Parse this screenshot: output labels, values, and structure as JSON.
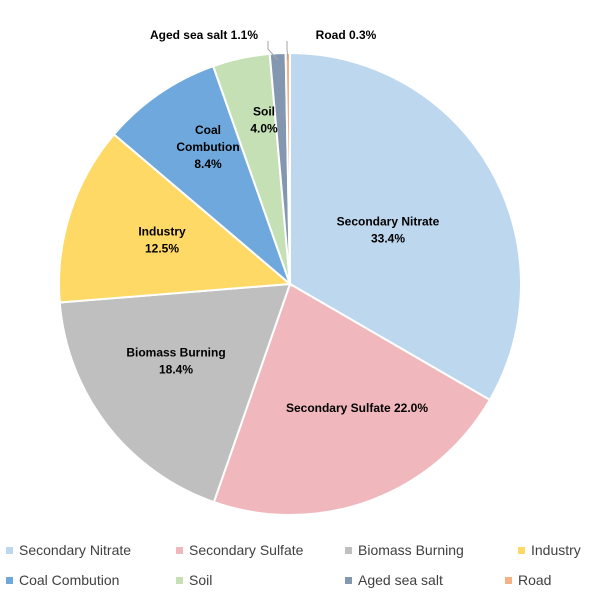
{
  "chart_data": {
    "type": "pie",
    "title": "",
    "slices": [
      {
        "name": "Secondary Nitrate",
        "value": 33.4,
        "label_text": "Secondary Nitrate",
        "value_text": "33.4%",
        "color": "#bdd7ee"
      },
      {
        "name": "Secondary Sulfate",
        "value": 22.0,
        "label_text": "Secondary Sulfate",
        "value_text": "22.0%",
        "color": "#f0b8bc"
      },
      {
        "name": "Biomass Burning",
        "value": 18.4,
        "label_text": "Biomass Burning",
        "value_text": "18.4%",
        "color": "#bfbfbf"
      },
      {
        "name": "Industry",
        "value": 12.5,
        "label_text": "Industry",
        "value_text": "12.5%",
        "color": "#ffd966"
      },
      {
        "name": "Coal Combution",
        "value": 8.4,
        "label_text": "Coal Combution",
        "value_text": "8.4%",
        "color": "#6fa8dc"
      },
      {
        "name": "Soil",
        "value": 4.0,
        "label_text": "Soil",
        "value_text": "4.0%",
        "color": "#c5e0b4"
      },
      {
        "name": "Aged sea salt",
        "value": 1.1,
        "label_text": "Aged sea salt",
        "value_text": "1.1%",
        "color": "#8497b0"
      },
      {
        "name": "Road",
        "value": 0.3,
        "label_text": "Road",
        "value_text": "0.3%",
        "color": "#f4b183"
      }
    ],
    "legend_position": "bottom"
  }
}
